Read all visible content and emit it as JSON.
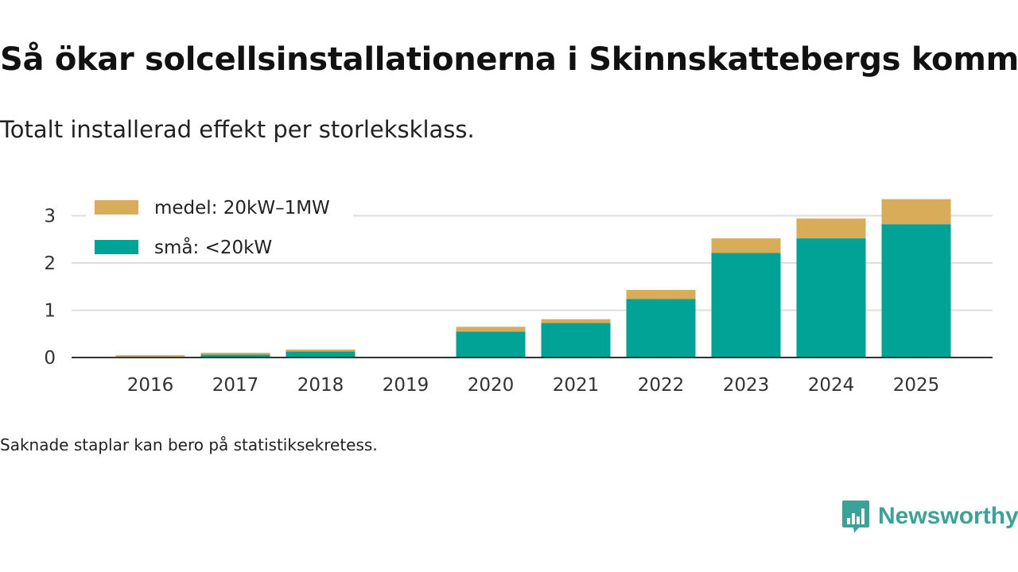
{
  "header": {
    "title": "Så ökar solcellsinstallationerna i Skinnskattebergs kommun",
    "subtitle": "Totalt installerad effekt per storleksklass."
  },
  "footer": {
    "note": "Saknade staplar kan bero på statistiksekretess.",
    "brand": "Newsworthy"
  },
  "colors": {
    "medel": "#d9ac59",
    "sma": "#00a396",
    "brand": "#3aa397",
    "gridline": "#dddddd",
    "axis": "#333333"
  },
  "chart_data": {
    "type": "bar",
    "stacked": true,
    "title": "Så ökar solcellsinstallationerna i Skinnskattebergs kommun",
    "subtitle": "Totalt installerad effekt per storleksklass.",
    "xlabel": "",
    "ylabel": "",
    "ylim": [
      0,
      3.4
    ],
    "yticks": [
      0,
      1,
      2,
      3
    ],
    "grid": true,
    "legend_position": "top-left",
    "categories": [
      "2016",
      "2017",
      "2018",
      "2019",
      "2020",
      "2021",
      "2022",
      "2023",
      "2024",
      "2025"
    ],
    "series": [
      {
        "name": "små: <20kW",
        "color_key": "sma",
        "values": [
          0.02,
          0.06,
          0.13,
          0,
          0.55,
          0.73,
          1.24,
          2.21,
          2.52,
          2.82
        ]
      },
      {
        "name": "medel: 20kW–1MW",
        "color_key": "medel",
        "values": [
          0.03,
          0.04,
          0.04,
          0,
          0.1,
          0.08,
          0.19,
          0.31,
          0.42,
          0.53
        ]
      }
    ],
    "legend": [
      {
        "label": "medel: 20kW–1MW",
        "color_key": "medel"
      },
      {
        "label": "små: <20kW",
        "color_key": "sma"
      }
    ]
  }
}
